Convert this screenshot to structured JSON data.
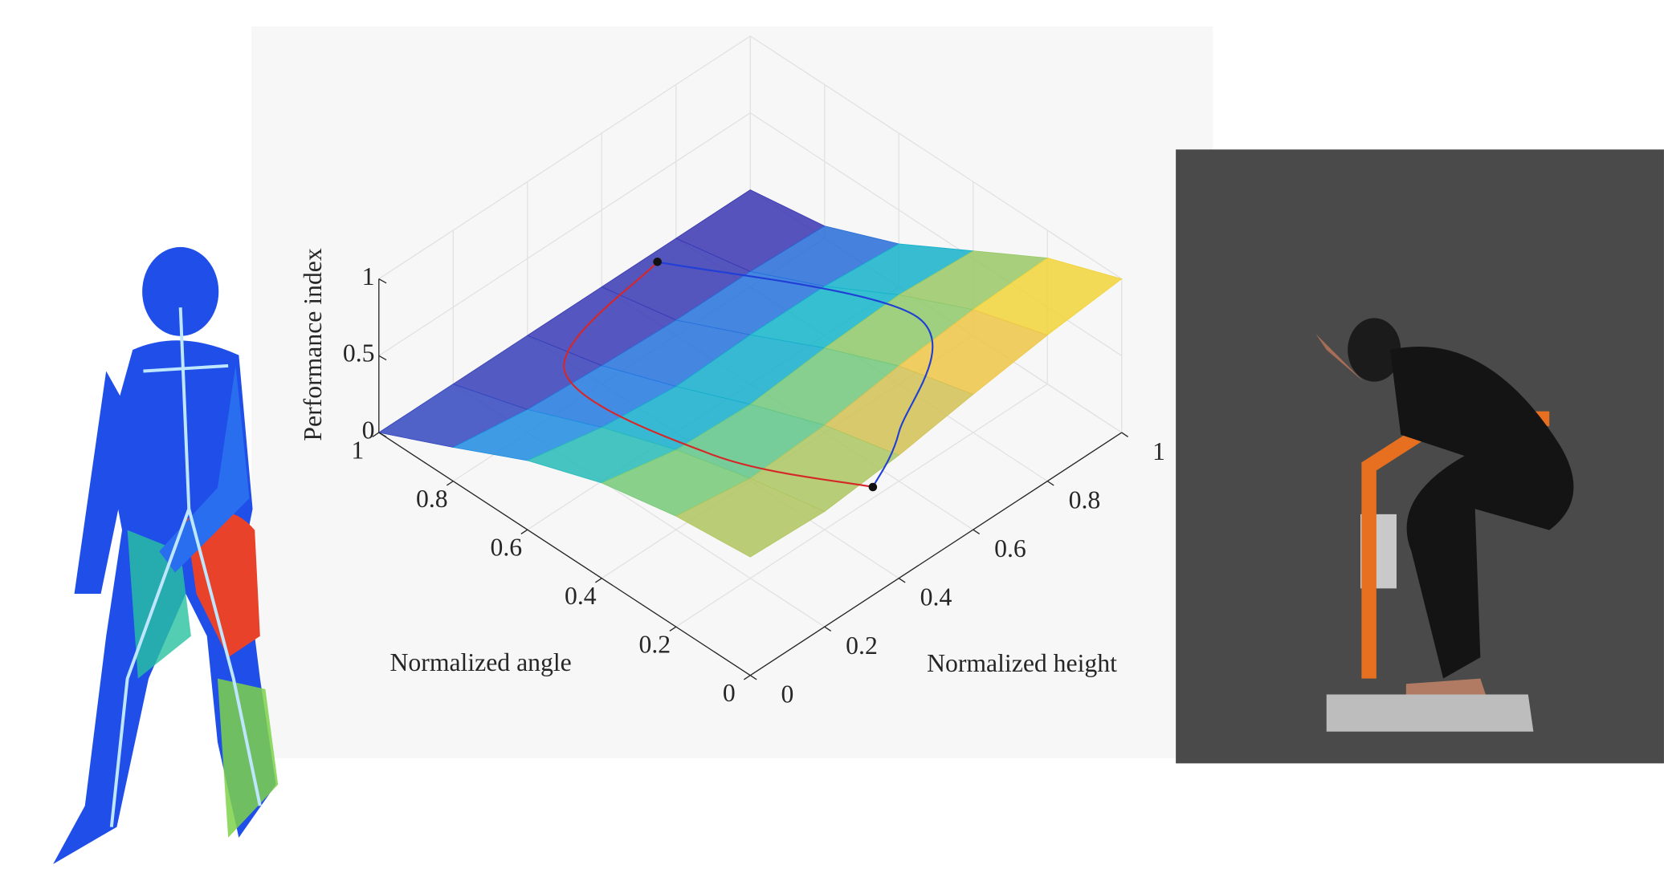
{
  "chart_data": {
    "type": "surface",
    "xlabel": "Normalized angle",
    "ylabel": "Normalized height",
    "zlabel": "Performance index",
    "xlim": [
      0,
      1
    ],
    "ylim": [
      0,
      1
    ],
    "zlim": [
      0,
      1
    ],
    "xticks": [
      0,
      0.2,
      0.4,
      0.6,
      0.8,
      1
    ],
    "yticks": [
      0,
      0.2,
      0.4,
      0.6,
      0.8,
      1
    ],
    "zticks": [
      0,
      0.5,
      1
    ],
    "grid": true,
    "colormap": "parula",
    "x": [
      0,
      0.2,
      0.4,
      0.6,
      0.8,
      1
    ],
    "y": [
      0,
      0.2,
      0.4,
      0.6,
      0.8,
      1
    ],
    "z": [
      [
        0.77,
        0.75,
        0.8,
        0.88,
        0.95,
        1.0
      ],
      [
        0.72,
        0.65,
        0.68,
        0.75,
        0.8,
        0.82
      ],
      [
        0.62,
        0.52,
        0.5,
        0.55,
        0.58,
        0.55
      ],
      [
        0.45,
        0.35,
        0.3,
        0.32,
        0.32,
        0.28
      ],
      [
        0.22,
        0.15,
        0.12,
        0.1,
        0.1,
        0.08
      ],
      [
        0,
        0,
        0,
        0,
        0,
        0
      ]
    ],
    "curves": [
      {
        "color": "#d62728",
        "x": [
          0.85,
          0.75,
          0.45,
          0.15
        ],
        "y": [
          0.6,
          0.25,
          0.35,
          0.48
        ],
        "z": [
          0.4,
          0.4,
          0.17,
          0.23
        ]
      },
      {
        "color": "#1f3fd6",
        "x": [
          0.85,
          0.5,
          0.3,
          0.15
        ],
        "y": [
          0.6,
          0.95,
          0.7,
          0.48
        ],
        "z": [
          0.4,
          0.04,
          0.0,
          0.23
        ]
      }
    ],
    "points": {
      "color": "#111111",
      "x": [
        0.85,
        0.15
      ],
      "y": [
        0.6,
        0.48
      ],
      "z": [
        0.4,
        0.23
      ]
    }
  }
}
